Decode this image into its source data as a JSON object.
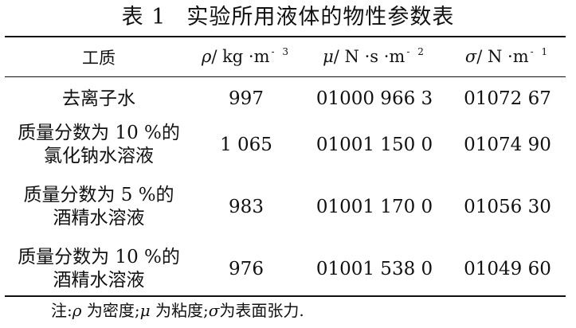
{
  "caption": {
    "number": "表 1",
    "title": "实验所用液体的物性参数表"
  },
  "table": {
    "headers": [
      {
        "text": "工质"
      },
      {
        "symbol": "ρ",
        "unit": "/ kg ·m",
        "exp": "- 3"
      },
      {
        "symbol": "μ",
        "unit": "/ N ·s ·m",
        "exp": "- 2"
      },
      {
        "symbol": "σ",
        "unit": "/ N ·m",
        "exp": "- 1"
      }
    ],
    "rows": [
      {
        "name": [
          "去离子水"
        ],
        "density": "997",
        "viscosity": "01000 966 3",
        "tension": "01072 67"
      },
      {
        "name": [
          "质量分数为 10 %的",
          "氯化钠水溶液"
        ],
        "density": "1 065",
        "viscosity": "01001 150 0",
        "tension": "01074 90"
      },
      {
        "name": [
          "质量分数为 5 %的",
          "酒精水溶液"
        ],
        "density": "983",
        "viscosity": "01001 170 0",
        "tension": "01056 30"
      },
      {
        "name": [
          "质量分数为 10 %的",
          "酒精水溶液"
        ],
        "density": "976",
        "viscosity": "01001 538 0",
        "tension": "01049 60"
      }
    ]
  },
  "note": {
    "prefix": "注:",
    "items": [
      {
        "symbol": "ρ",
        "text": " 为密度;"
      },
      {
        "symbol": "μ",
        "text": " 为粘度;"
      },
      {
        "symbol": "σ",
        "text": "为表面张力."
      }
    ]
  }
}
